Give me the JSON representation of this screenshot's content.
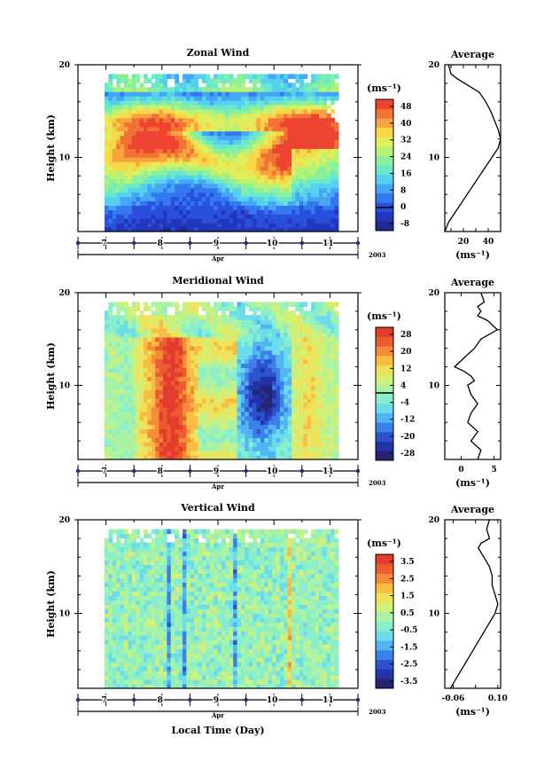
{
  "chart_data": [
    {
      "type": "heatmap",
      "title": "Zonal Wind",
      "ylabel": "Height (km)",
      "ylim": [
        2,
        20
      ],
      "yticks": [
        "20",
        "10"
      ],
      "xticks": [
        "7",
        "8",
        "9",
        "10",
        "11"
      ],
      "xsub": "Apr",
      "year": "2003",
      "unit_label": "(ms⁻¹)",
      "colorbar_ticks": [
        "48",
        "40",
        "32",
        "24",
        "16",
        "8",
        "0",
        "-8"
      ],
      "colorbar_range": [
        -12,
        52
      ]
    },
    {
      "type": "line",
      "title": "Average",
      "ylim": [
        2,
        20
      ],
      "yticks": [
        "20",
        "10"
      ],
      "xticks": [
        "20",
        "40"
      ],
      "xlim": [
        5,
        50
      ],
      "xlabel": "(ms⁻¹)",
      "series": [
        {
          "x": [
            5,
            8,
            13,
            18,
            23,
            28,
            33,
            38,
            43,
            48,
            50,
            48,
            45,
            42,
            38,
            33,
            27,
            21,
            15,
            10,
            8
          ],
          "y": [
            2,
            3,
            4,
            5,
            6,
            7,
            8,
            9,
            10,
            11,
            12,
            13,
            14,
            15,
            16,
            17,
            17.5,
            18,
            18.5,
            19,
            20
          ]
        }
      ]
    },
    {
      "type": "heatmap",
      "title": "Meridional Wind",
      "ylabel": "Height (km)",
      "ylim": [
        2,
        20
      ],
      "yticks": [
        "20",
        "10"
      ],
      "xticks": [
        "7",
        "8",
        "9",
        "10",
        "11"
      ],
      "xsub": "Apr",
      "year": "2003",
      "unit_label": "(ms⁻¹)",
      "colorbar_ticks": [
        "28",
        "20",
        "12",
        "4",
        "-4",
        "-12",
        "-20",
        "-28"
      ],
      "colorbar_range": [
        -32,
        32
      ]
    },
    {
      "type": "line",
      "title": "Average",
      "ylim": [
        2,
        20
      ],
      "yticks": [
        "20",
        "10"
      ],
      "xticks": [
        "0",
        "5"
      ],
      "xlim": [
        -2.5,
        6
      ],
      "xlabel": "(ms⁻¹)",
      "series": [
        {
          "x": [
            2.5,
            3.0,
            1.5,
            2.5,
            1.0,
            1.5,
            2.5,
            1.5,
            1.0,
            2.0,
            1.5,
            0.5,
            -1.0,
            0.5,
            2.0,
            3.0,
            5.5,
            4.0,
            2.5,
            3.0,
            2.5,
            3.5,
            3.0
          ],
          "y": [
            2,
            3,
            4,
            5,
            6,
            7,
            8,
            9,
            10,
            10.5,
            11,
            11.5,
            12,
            13,
            14,
            15,
            16,
            17,
            17.5,
            18,
            18.5,
            19,
            20
          ]
        }
      ]
    },
    {
      "type": "heatmap",
      "title": "Vertical Wind",
      "ylabel": "Height (km)",
      "ylim": [
        2,
        20
      ],
      "yticks": [
        "20",
        "10"
      ],
      "xticks": [
        "7",
        "8",
        "9",
        "10",
        "11"
      ],
      "xsub": "Apr",
      "year": "2003",
      "xlabel": "Local Time (Day)",
      "unit_label": "(ms⁻¹)",
      "colorbar_ticks": [
        "3.5",
        "2.5",
        "1.5",
        "0.5",
        "-0.5",
        "-1.5",
        "-2.5",
        "-3.5"
      ],
      "colorbar_range": [
        -4,
        4
      ]
    },
    {
      "type": "line",
      "title": "Average",
      "ylim": [
        2,
        20
      ],
      "yticks": [
        "20",
        "10"
      ],
      "xticks": [
        "-0.06",
        "0.10"
      ],
      "xlim": [
        -0.09,
        0.11
      ],
      "xlabel": "(ms⁻¹)",
      "series": [
        {
          "x": [
            -0.07,
            -0.05,
            -0.03,
            -0.01,
            0.01,
            0.03,
            0.05,
            0.07,
            0.09,
            0.1,
            0.09,
            0.08,
            0.08,
            0.07,
            0.05,
            0.03,
            0.04,
            0.07,
            0.06,
            0.07
          ],
          "y": [
            2,
            3,
            4,
            5,
            6,
            7,
            8,
            9,
            10,
            11,
            12,
            13,
            14,
            15,
            16,
            17,
            17.5,
            18,
            19,
            20
          ]
        }
      ]
    }
  ],
  "colors": {
    "zonal_scale": [
      "#1e2890",
      "#2238b8",
      "#2850dc",
      "#3478f0",
      "#44a6f4",
      "#56d0ee",
      "#6ae8cc",
      "#8af09c",
      "#b8f274",
      "#e0ee5c",
      "#f8d648",
      "#f6a43c",
      "#f07234",
      "#ec4430"
    ],
    "merid_scale": [
      "#242470",
      "#2434a8",
      "#2c52d0",
      "#3c80e8",
      "#52b4f0",
      "#6adcea",
      "#88eecc",
      "#aaf2a4",
      "#d0f078",
      "#f0e258",
      "#f8bc44",
      "#f48c38",
      "#ec5c30",
      "#e43c2c"
    ],
    "vert_scale": [
      "#242470",
      "#2434a8",
      "#2c52d0",
      "#3c80e8",
      "#52b4f0",
      "#6adcea",
      "#88eecc",
      "#aaf2a4",
      "#d0f078",
      "#f0e258",
      "#f8bc44",
      "#f48c38",
      "#ec5c30",
      "#e43c2c"
    ],
    "axis_tick_marker": "#1c2a80"
  }
}
